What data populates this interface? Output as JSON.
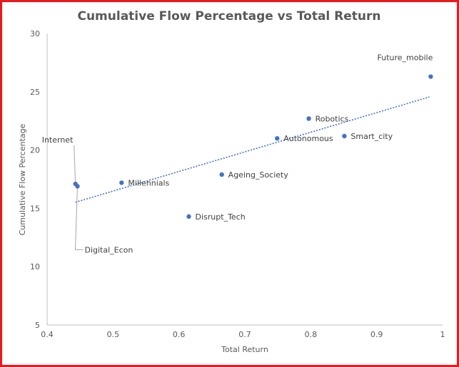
{
  "chart_data": {
    "type": "scatter",
    "title": "Cumulative Flow Percentage vs Total Return",
    "xlabel": "Total Return",
    "ylabel": "Cumulative Flow Percentage",
    "xlim": [
      0.4,
      1.0
    ],
    "ylim": [
      5,
      30
    ],
    "xticks": [
      "0.4",
      "0.5",
      "0.6",
      "0.7",
      "0.8",
      "0.9",
      "1"
    ],
    "yticks": [
      "5",
      "10",
      "15",
      "20",
      "25",
      "30"
    ],
    "grid": false,
    "trendline": {
      "type": "linear",
      "style": "dotted",
      "x_start": 0.443,
      "x_end": 0.98
    },
    "points": [
      {
        "label": "Internet",
        "x": 0.443,
        "y": 17.1
      },
      {
        "label": "Digital_Econ",
        "x": 0.446,
        "y": 16.9
      },
      {
        "label": "Millennials",
        "x": 0.513,
        "y": 17.2
      },
      {
        "label": "Disrupt_Tech",
        "x": 0.615,
        "y": 14.3
      },
      {
        "label": "Ageing_Society",
        "x": 0.665,
        "y": 17.9
      },
      {
        "label": "Autonomous",
        "x": 0.749,
        "y": 21.0
      },
      {
        "label": "Robotics",
        "x": 0.797,
        "y": 22.7
      },
      {
        "label": "Smart_city",
        "x": 0.851,
        "y": 21.2
      },
      {
        "label": "Future_mobile",
        "x": 0.982,
        "y": 26.3
      }
    ],
    "colors": {
      "point": "#4472c4",
      "trendline": "#4472c4",
      "axis": "#bfbfbf",
      "frame": "#e8191e",
      "text": "#595959"
    }
  }
}
